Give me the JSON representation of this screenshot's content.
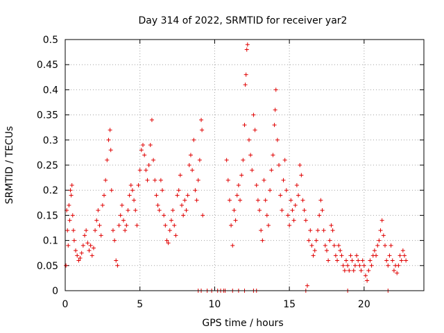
{
  "chart_data": {
    "type": "scatter",
    "title": "Day 314 of 2022, SRMTID for receiver yar2",
    "xlabel": "GPS time / hours",
    "ylabel": "SRMTID / TECUs",
    "xlim": [
      0,
      24
    ],
    "ylim": [
      0,
      0.5
    ],
    "xticks": [
      0,
      5,
      10,
      15,
      20
    ],
    "xtick_labels": [
      "0",
      "5",
      "10",
      "15",
      "20"
    ],
    "yticks": [
      0,
      0.05,
      0.1,
      0.15,
      0.2,
      0.25,
      0.3,
      0.35,
      0.4,
      0.45,
      0.5
    ],
    "ytick_labels": [
      "0",
      "0.05",
      "0.1",
      "0.15",
      "0.2",
      "0.25",
      "0.3",
      "0.35",
      "0.4",
      "0.45",
      "0.5"
    ],
    "grid": true,
    "marker": "+",
    "color": "#e00000",
    "series": [
      {
        "name": "SRMTID",
        "points": [
          [
            0.05,
            0.05
          ],
          [
            0.1,
            0.16
          ],
          [
            0.15,
            0.12
          ],
          [
            0.2,
            0.09
          ],
          [
            0.25,
            0.17
          ],
          [
            0.3,
            0.14
          ],
          [
            0.35,
            0.2
          ],
          [
            0.4,
            0.19
          ],
          [
            0.45,
            0.21
          ],
          [
            0.5,
            0.15
          ],
          [
            0.55,
            0.12
          ],
          [
            0.6,
            0.1
          ],
          [
            0.7,
            0.08
          ],
          [
            0.8,
            0.07
          ],
          [
            0.9,
            0.06
          ],
          [
            1.0,
            0.065
          ],
          [
            1.1,
            0.075
          ],
          [
            1.2,
            0.09
          ],
          [
            1.3,
            0.11
          ],
          [
            1.4,
            0.12
          ],
          [
            1.5,
            0.095
          ],
          [
            1.6,
            0.08
          ],
          [
            1.7,
            0.09
          ],
          [
            1.8,
            0.07
          ],
          [
            1.9,
            0.085
          ],
          [
            2.0,
            0.12
          ],
          [
            2.1,
            0.14
          ],
          [
            2.2,
            0.16
          ],
          [
            2.3,
            0.13
          ],
          [
            2.4,
            0.11
          ],
          [
            2.5,
            0.17
          ],
          [
            2.6,
            0.19
          ],
          [
            2.7,
            0.22
          ],
          [
            2.8,
            0.26
          ],
          [
            2.9,
            0.3
          ],
          [
            3.0,
            0.32
          ],
          [
            3.05,
            0.28
          ],
          [
            3.1,
            0.2
          ],
          [
            3.2,
            0.12
          ],
          [
            3.3,
            0.1
          ],
          [
            3.4,
            0.06
          ],
          [
            3.5,
            0.05
          ],
          [
            3.6,
            0.13
          ],
          [
            3.7,
            0.15
          ],
          [
            3.8,
            0.17
          ],
          [
            3.9,
            0.14
          ],
          [
            4.0,
            0.12
          ],
          [
            4.1,
            0.13
          ],
          [
            4.2,
            0.16
          ],
          [
            4.3,
            0.19
          ],
          [
            4.4,
            0.21
          ],
          [
            4.5,
            0.2
          ],
          [
            4.6,
            0.18
          ],
          [
            4.7,
            0.16
          ],
          [
            4.8,
            0.13
          ],
          [
            4.9,
            0.21
          ],
          [
            5.0,
            0.24
          ],
          [
            5.1,
            0.28
          ],
          [
            5.2,
            0.29
          ],
          [
            5.3,
            0.27
          ],
          [
            5.4,
            0.24
          ],
          [
            5.5,
            0.22
          ],
          [
            5.6,
            0.25
          ],
          [
            5.7,
            0.29
          ],
          [
            5.8,
            0.34
          ],
          [
            5.9,
            0.26
          ],
          [
            6.0,
            0.22
          ],
          [
            6.1,
            0.19
          ],
          [
            6.2,
            0.17
          ],
          [
            6.3,
            0.16
          ],
          [
            6.4,
            0.22
          ],
          [
            6.5,
            0.2
          ],
          [
            6.6,
            0.15
          ],
          [
            6.7,
            0.13
          ],
          [
            6.8,
            0.1
          ],
          [
            6.9,
            0.095
          ],
          [
            7.0,
            0.12
          ],
          [
            7.1,
            0.14
          ],
          [
            7.2,
            0.16
          ],
          [
            7.3,
            0.13
          ],
          [
            7.4,
            0.11
          ],
          [
            7.5,
            0.19
          ],
          [
            7.6,
            0.2
          ],
          [
            7.7,
            0.23
          ],
          [
            7.8,
            0.17
          ],
          [
            7.9,
            0.15
          ],
          [
            8.0,
            0.18
          ],
          [
            8.1,
            0.16
          ],
          [
            8.2,
            0.19
          ],
          [
            8.3,
            0.25
          ],
          [
            8.4,
            0.27
          ],
          [
            8.5,
            0.24
          ],
          [
            8.6,
            0.3
          ],
          [
            8.7,
            0.2
          ],
          [
            8.8,
            0.18
          ],
          [
            8.9,
            0.22
          ],
          [
            9.0,
            0.26
          ],
          [
            9.1,
            0.34
          ],
          [
            9.15,
            0.32
          ],
          [
            9.2,
            0.15
          ],
          [
            10.8,
            0.26
          ],
          [
            10.9,
            0.22
          ],
          [
            11.0,
            0.18
          ],
          [
            11.1,
            0.13
          ],
          [
            11.2,
            0.09
          ],
          [
            11.3,
            0.16
          ],
          [
            11.4,
            0.14
          ],
          [
            11.5,
            0.19
          ],
          [
            11.6,
            0.21
          ],
          [
            11.7,
            0.18
          ],
          [
            11.8,
            0.23
          ],
          [
            11.9,
            0.26
          ],
          [
            12.0,
            0.33
          ],
          [
            12.05,
            0.41
          ],
          [
            12.1,
            0.43
          ],
          [
            12.15,
            0.48
          ],
          [
            12.2,
            0.49
          ],
          [
            12.3,
            0.3
          ],
          [
            12.4,
            0.27
          ],
          [
            12.5,
            0.24
          ],
          [
            12.6,
            0.35
          ],
          [
            12.7,
            0.32
          ],
          [
            12.8,
            0.21
          ],
          [
            12.9,
            0.18
          ],
          [
            13.0,
            0.16
          ],
          [
            13.1,
            0.12
          ],
          [
            13.2,
            0.1
          ],
          [
            13.3,
            0.22
          ],
          [
            13.4,
            0.18
          ],
          [
            13.5,
            0.15
          ],
          [
            13.6,
            0.13
          ],
          [
            13.7,
            0.2
          ],
          [
            13.8,
            0.24
          ],
          [
            13.9,
            0.27
          ],
          [
            14.0,
            0.33
          ],
          [
            14.05,
            0.36
          ],
          [
            14.1,
            0.4
          ],
          [
            14.2,
            0.3
          ],
          [
            14.3,
            0.25
          ],
          [
            14.4,
            0.19
          ],
          [
            14.5,
            0.16
          ],
          [
            14.6,
            0.22
          ],
          [
            14.7,
            0.26
          ],
          [
            14.8,
            0.2
          ],
          [
            14.9,
            0.15
          ],
          [
            15.0,
            0.13
          ],
          [
            15.1,
            0.18
          ],
          [
            15.2,
            0.16
          ],
          [
            15.3,
            0.14
          ],
          [
            15.4,
            0.17
          ],
          [
            15.5,
            0.21
          ],
          [
            15.6,
            0.19
          ],
          [
            15.7,
            0.25
          ],
          [
            15.8,
            0.23
          ],
          [
            15.9,
            0.18
          ],
          [
            16.0,
            0.16
          ],
          [
            16.1,
            0.14
          ],
          [
            16.2,
            0.01
          ],
          [
            16.3,
            0.1
          ],
          [
            16.4,
            0.12
          ],
          [
            16.5,
            0.09
          ],
          [
            16.6,
            0.07
          ],
          [
            16.7,
            0.08
          ],
          [
            16.8,
            0.1
          ],
          [
            16.9,
            0.12
          ],
          [
            17.0,
            0.15
          ],
          [
            17.1,
            0.18
          ],
          [
            17.2,
            0.16
          ],
          [
            17.3,
            0.12
          ],
          [
            17.4,
            0.09
          ],
          [
            17.5,
            0.08
          ],
          [
            17.6,
            0.06
          ],
          [
            17.7,
            0.1
          ],
          [
            17.8,
            0.13
          ],
          [
            17.9,
            0.12
          ],
          [
            18.0,
            0.09
          ],
          [
            18.1,
            0.07
          ],
          [
            18.2,
            0.06
          ],
          [
            18.3,
            0.09
          ],
          [
            18.4,
            0.08
          ],
          [
            18.5,
            0.07
          ],
          [
            18.6,
            0.05
          ],
          [
            18.7,
            0.04
          ],
          [
            18.8,
            0.06
          ],
          [
            18.9,
            0.05
          ],
          [
            19.0,
            0.04
          ],
          [
            19.1,
            0.07
          ],
          [
            19.2,
            0.06
          ],
          [
            19.3,
            0.04
          ],
          [
            19.4,
            0.05
          ],
          [
            19.5,
            0.07
          ],
          [
            19.6,
            0.06
          ],
          [
            19.7,
            0.05
          ],
          [
            19.8,
            0.04
          ],
          [
            19.9,
            0.06
          ],
          [
            20.0,
            0.05
          ],
          [
            20.1,
            0.03
          ],
          [
            20.2,
            0.02
          ],
          [
            20.3,
            0.04
          ],
          [
            20.4,
            0.06
          ],
          [
            20.5,
            0.05
          ],
          [
            20.6,
            0.07
          ],
          [
            20.7,
            0.08
          ],
          [
            20.8,
            0.07
          ],
          [
            20.9,
            0.09
          ],
          [
            21.0,
            0.1
          ],
          [
            21.1,
            0.12
          ],
          [
            21.2,
            0.14
          ],
          [
            21.3,
            0.11
          ],
          [
            21.4,
            0.09
          ],
          [
            21.5,
            0.06
          ],
          [
            21.6,
            0.05
          ],
          [
            21.7,
            0.07
          ],
          [
            21.8,
            0.09
          ],
          [
            21.9,
            0.06
          ],
          [
            22.0,
            0.04
          ],
          [
            22.1,
            0.05
          ],
          [
            22.2,
            0.035
          ],
          [
            22.3,
            0.05
          ],
          [
            22.4,
            0.07
          ],
          [
            22.5,
            0.06
          ],
          [
            22.6,
            0.08
          ],
          [
            22.7,
            0.07
          ],
          [
            22.8,
            0.06
          ],
          [
            8.9,
            0
          ],
          [
            9.1,
            0
          ],
          [
            9.5,
            0
          ],
          [
            9.8,
            0
          ],
          [
            10.2,
            0
          ],
          [
            10.4,
            0
          ],
          [
            10.6,
            0
          ],
          [
            10.7,
            0
          ],
          [
            11.2,
            0
          ],
          [
            11.6,
            0
          ],
          [
            12.0,
            0
          ],
          [
            12.6,
            0
          ],
          [
            12.8,
            0
          ],
          [
            16.1,
            0
          ],
          [
            18.9,
            0
          ],
          [
            21.6,
            0
          ]
        ]
      }
    ]
  }
}
